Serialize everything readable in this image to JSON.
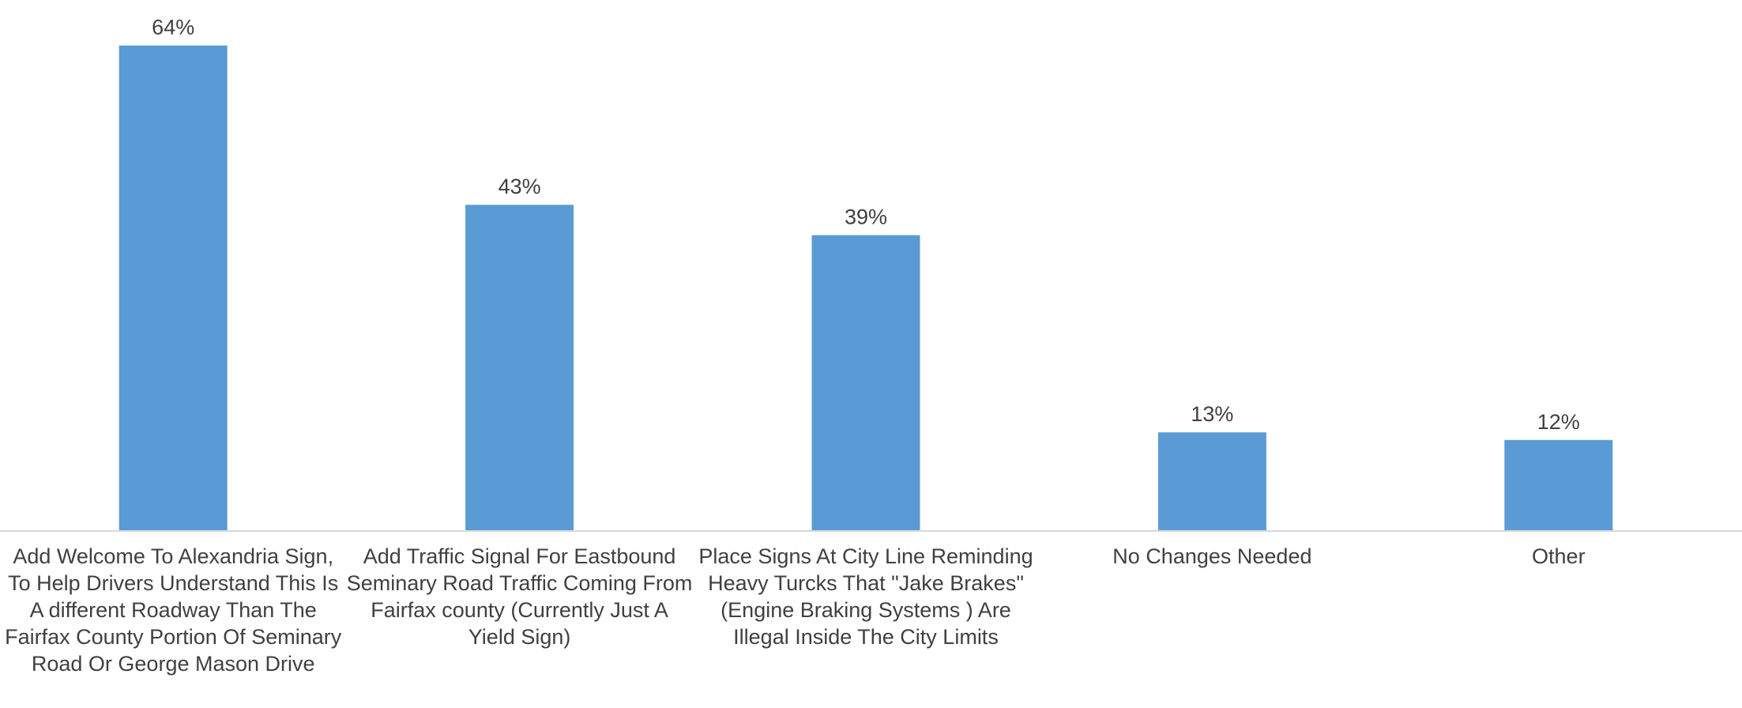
{
  "chart_data": {
    "type": "bar",
    "categories": [
      "Add Welcome To Alexandria Sign, To Help Drivers Understand This Is A different Roadway Than The Fairfax County Portion Of Seminary Road Or George Mason Drive",
      "Add Traffic Signal For Eastbound Seminary Road Traffic Coming From Fairfax county (Currently Just A Yield Sign)",
      "Place Signs At City Line Reminding Heavy Turcks That \"Jake Brakes\" (Engine Braking Systems ) Are Illegal Inside The City Limits",
      "No Changes Needed",
      "Other"
    ],
    "values": [
      64,
      43,
      39,
      13,
      12
    ],
    "data_labels": [
      "64%",
      "43%",
      "39%",
      "13%",
      "12%"
    ],
    "ylim": [
      0,
      70
    ],
    "grid": false,
    "legend": "none",
    "colors": {
      "bar": "#5b9bd5",
      "label_text": "#404040",
      "axis": "#d9d9d9"
    }
  }
}
